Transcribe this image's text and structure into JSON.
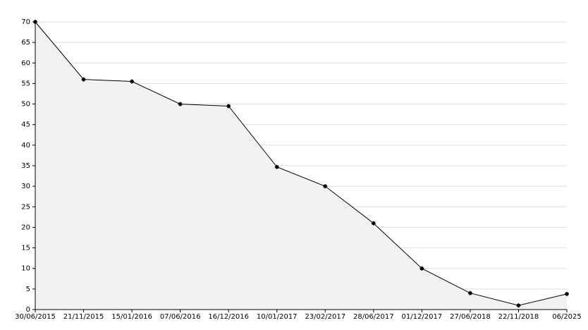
{
  "chart_data": {
    "type": "area",
    "categories": [
      "30/06/2015",
      "21/11/2015",
      "15/01/2016",
      "07/06/2016",
      "16/12/2016",
      "10/01/2017",
      "23/02/2017",
      "28/06/2017",
      "01/12/2017",
      "27/06/2018",
      "22/11/2018",
      "06/2025"
    ],
    "values": [
      70,
      56,
      55.5,
      50,
      49.5,
      34.7,
      30,
      21,
      10,
      4,
      1,
      3.8
    ],
    "color": "#000000",
    "fill": "#f2f2f2",
    "ylim": [
      0,
      70
    ],
    "yticks": [
      0,
      5,
      10,
      15,
      20,
      25,
      30,
      35,
      40,
      45,
      50,
      55,
      60,
      65,
      70
    ],
    "grid": true
  }
}
